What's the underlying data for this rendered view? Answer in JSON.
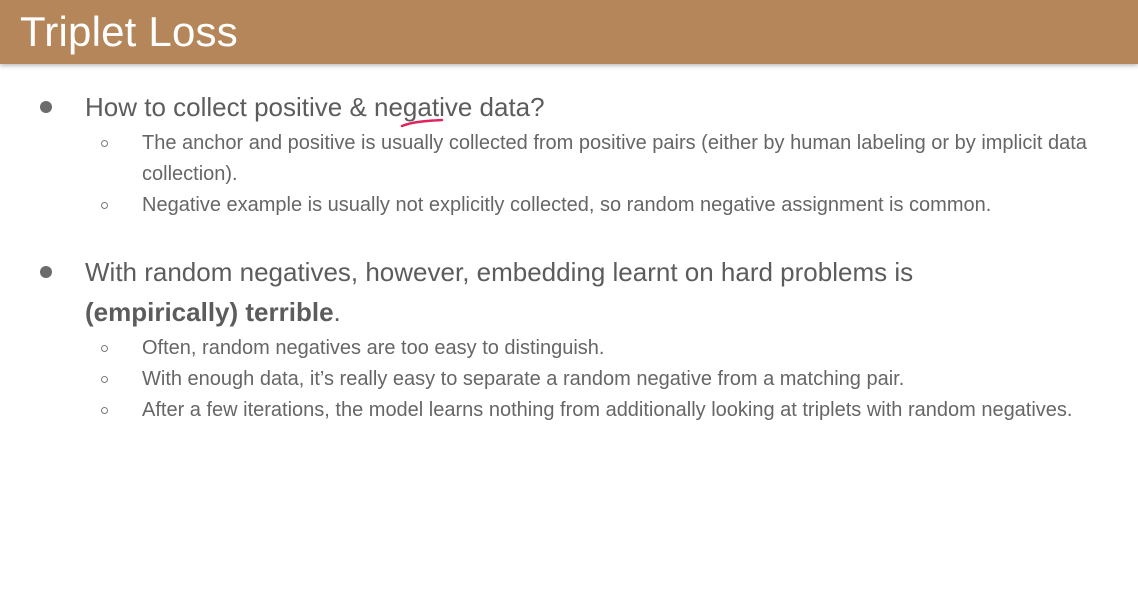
{
  "title": "Triplet Loss",
  "sections": [
    {
      "heading": "How to collect positive & negative data?",
      "items": [
        "The anchor and positive is usually collected from positive pairs (either by human labeling or by implicit data collection).",
        "Negative example is usually not explicitly collected, so random negative assignment is common."
      ]
    },
    {
      "heading_part1": "With random negatives, however, embedding learnt on hard problems is",
      "heading_bold": "(empirically) terrible",
      "heading_end": ".",
      "items": [
        "Often, random negatives are too easy to distinguish.",
        "With enough data, it’s really easy to separate a random negative from a matching pair.",
        "After a few iterations, the model learns nothing from additionally looking at triplets with random negatives."
      ]
    }
  ],
  "colors": {
    "title_bar": "#b4865a",
    "title_text": "#ffffff",
    "body_text": "#5c5c5c",
    "pen_mark": "#e0245e"
  }
}
